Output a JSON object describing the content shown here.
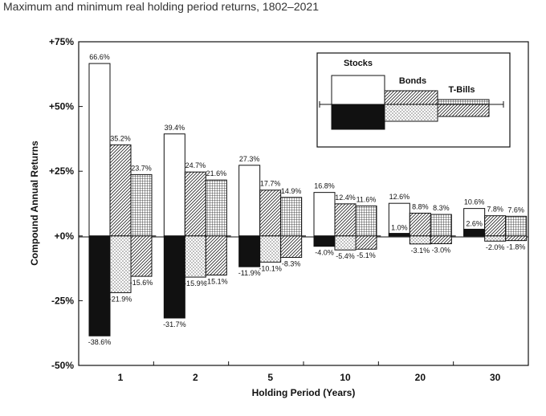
{
  "chart_data": {
    "type": "bar",
    "title": "Maximum and minimum real holding period returns, 1802–2021",
    "xlabel": "Holding Period (Years)",
    "ylabel": "Compound Annual Returns",
    "categories": [
      "1",
      "2",
      "5",
      "10",
      "20",
      "30"
    ],
    "ylim": [
      -50,
      75
    ],
    "yticks": [
      {
        "value": 75,
        "label": "+75%"
      },
      {
        "value": 50,
        "label": "+50%"
      },
      {
        "value": 25,
        "label": "+25%"
      },
      {
        "value": 0,
        "label": "+0%"
      },
      {
        "value": -25,
        "label": "-25%"
      },
      {
        "value": -50,
        "label": "-50%"
      }
    ],
    "series": [
      {
        "name": "Stocks",
        "max": [
          66.6,
          39.4,
          27.3,
          16.8,
          12.6,
          10.6
        ],
        "min": [
          -38.6,
          -31.7,
          -11.9,
          -4.0,
          1.0,
          2.6
        ],
        "max_labels": [
          "66.6%",
          "39.4%",
          "27.3%",
          "16.8%",
          "12.6%",
          "10.6%"
        ],
        "min_labels": [
          "-38.6%",
          "-31.7%",
          "-11.9%",
          "-4.0%",
          "1.0%",
          "2.6%"
        ]
      },
      {
        "name": "Bonds",
        "max": [
          35.2,
          24.7,
          17.7,
          12.4,
          8.8,
          7.8
        ],
        "min": [
          -21.9,
          -15.9,
          -10.1,
          -5.4,
          -3.1,
          -2.0
        ],
        "max_labels": [
          "35.2%",
          "24.7%",
          "17.7%",
          "12.4%",
          "8.8%",
          "7.8%"
        ],
        "min_labels": [
          "-21.9%",
          "-15.9%",
          "-10.1%",
          "-5.4%",
          "-3.1%",
          "-2.0%"
        ]
      },
      {
        "name": "T-Bills",
        "max": [
          23.7,
          21.6,
          14.9,
          11.6,
          8.3,
          7.6
        ],
        "min": [
          -15.6,
          -15.1,
          -8.3,
          -5.1,
          -3.0,
          -1.8
        ],
        "max_labels": [
          "23.7%",
          "21.6%",
          "14.9%",
          "11.6%",
          "8.3%",
          "7.6%"
        ],
        "min_labels": [
          "-15.6%",
          "-15.1%",
          "-8.3%",
          "-5.1%",
          "-3.0%",
          "-1.8%"
        ]
      }
    ],
    "legend": {
      "placement": "top-right",
      "entries": [
        "Stocks",
        "Bonds",
        "T-Bills"
      ]
    },
    "grid": false
  }
}
